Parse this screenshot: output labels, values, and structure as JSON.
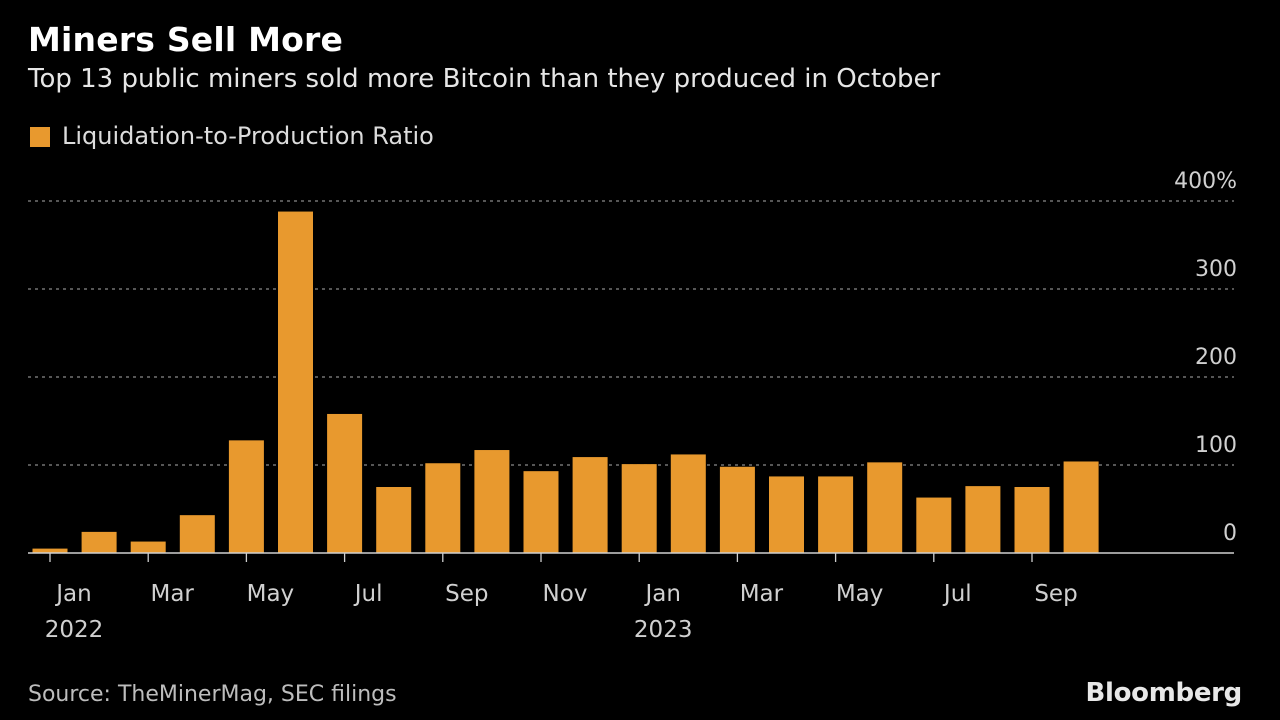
{
  "header": {
    "title": "Miners Sell More",
    "subtitle": "Top 13 public miners sold more Bitcoin than they produced in October"
  },
  "footer": {
    "source": "Source: TheMinerMag, SEC filings",
    "brand": "Bloomberg"
  },
  "colors": {
    "bar": "#e8992e",
    "grid": "#8a8a8a",
    "axis": "#cfcfcf",
    "tick_text": "#d0d0d0"
  },
  "chart_data": {
    "type": "bar",
    "title": "Miners Sell More",
    "subtitle": "Top 13 public miners sold more Bitcoin than they produced in October",
    "series": [
      {
        "name": "Liquidation-to-Production Ratio",
        "values": [
          5,
          24,
          13,
          43,
          128,
          388,
          158,
          75,
          102,
          117,
          93,
          109,
          101,
          112,
          98,
          87,
          87,
          103,
          63,
          76,
          75,
          104
        ]
      }
    ],
    "categories": [
      "Jan 2022",
      "Feb 2022",
      "Mar 2022",
      "Apr 2022",
      "May 2022",
      "Jun 2022",
      "Jul 2022",
      "Aug 2022",
      "Sep 2022",
      "Oct 2022",
      "Nov 2022",
      "Dec 2022",
      "Jan 2023",
      "Feb 2023",
      "Mar 2023",
      "Apr 2023",
      "May 2023",
      "Jun 2023",
      "Jul 2023",
      "Aug 2023",
      "Sep 2023",
      "Oct 2023"
    ],
    "x_tick_labels": [
      {
        "index": 0,
        "label": "Jan",
        "year": "2022"
      },
      {
        "index": 2,
        "label": "Mar",
        "year": ""
      },
      {
        "index": 4,
        "label": "May",
        "year": ""
      },
      {
        "index": 6,
        "label": "Jul",
        "year": ""
      },
      {
        "index": 8,
        "label": "Sep",
        "year": ""
      },
      {
        "index": 10,
        "label": "Nov",
        "year": ""
      },
      {
        "index": 12,
        "label": "Jan",
        "year": "2023"
      },
      {
        "index": 14,
        "label": "Mar",
        "year": ""
      },
      {
        "index": 16,
        "label": "May",
        "year": ""
      },
      {
        "index": 18,
        "label": "Jul",
        "year": ""
      },
      {
        "index": 20,
        "label": "Sep",
        "year": ""
      }
    ],
    "y_ticks": [
      0,
      100,
      200,
      300,
      400
    ],
    "y_tick_labels": [
      "0",
      "100",
      "200",
      "300",
      "400%"
    ],
    "ylim": [
      0,
      400
    ],
    "xlabel": "",
    "ylabel": "",
    "grid": true,
    "legend_position": "top-left"
  }
}
